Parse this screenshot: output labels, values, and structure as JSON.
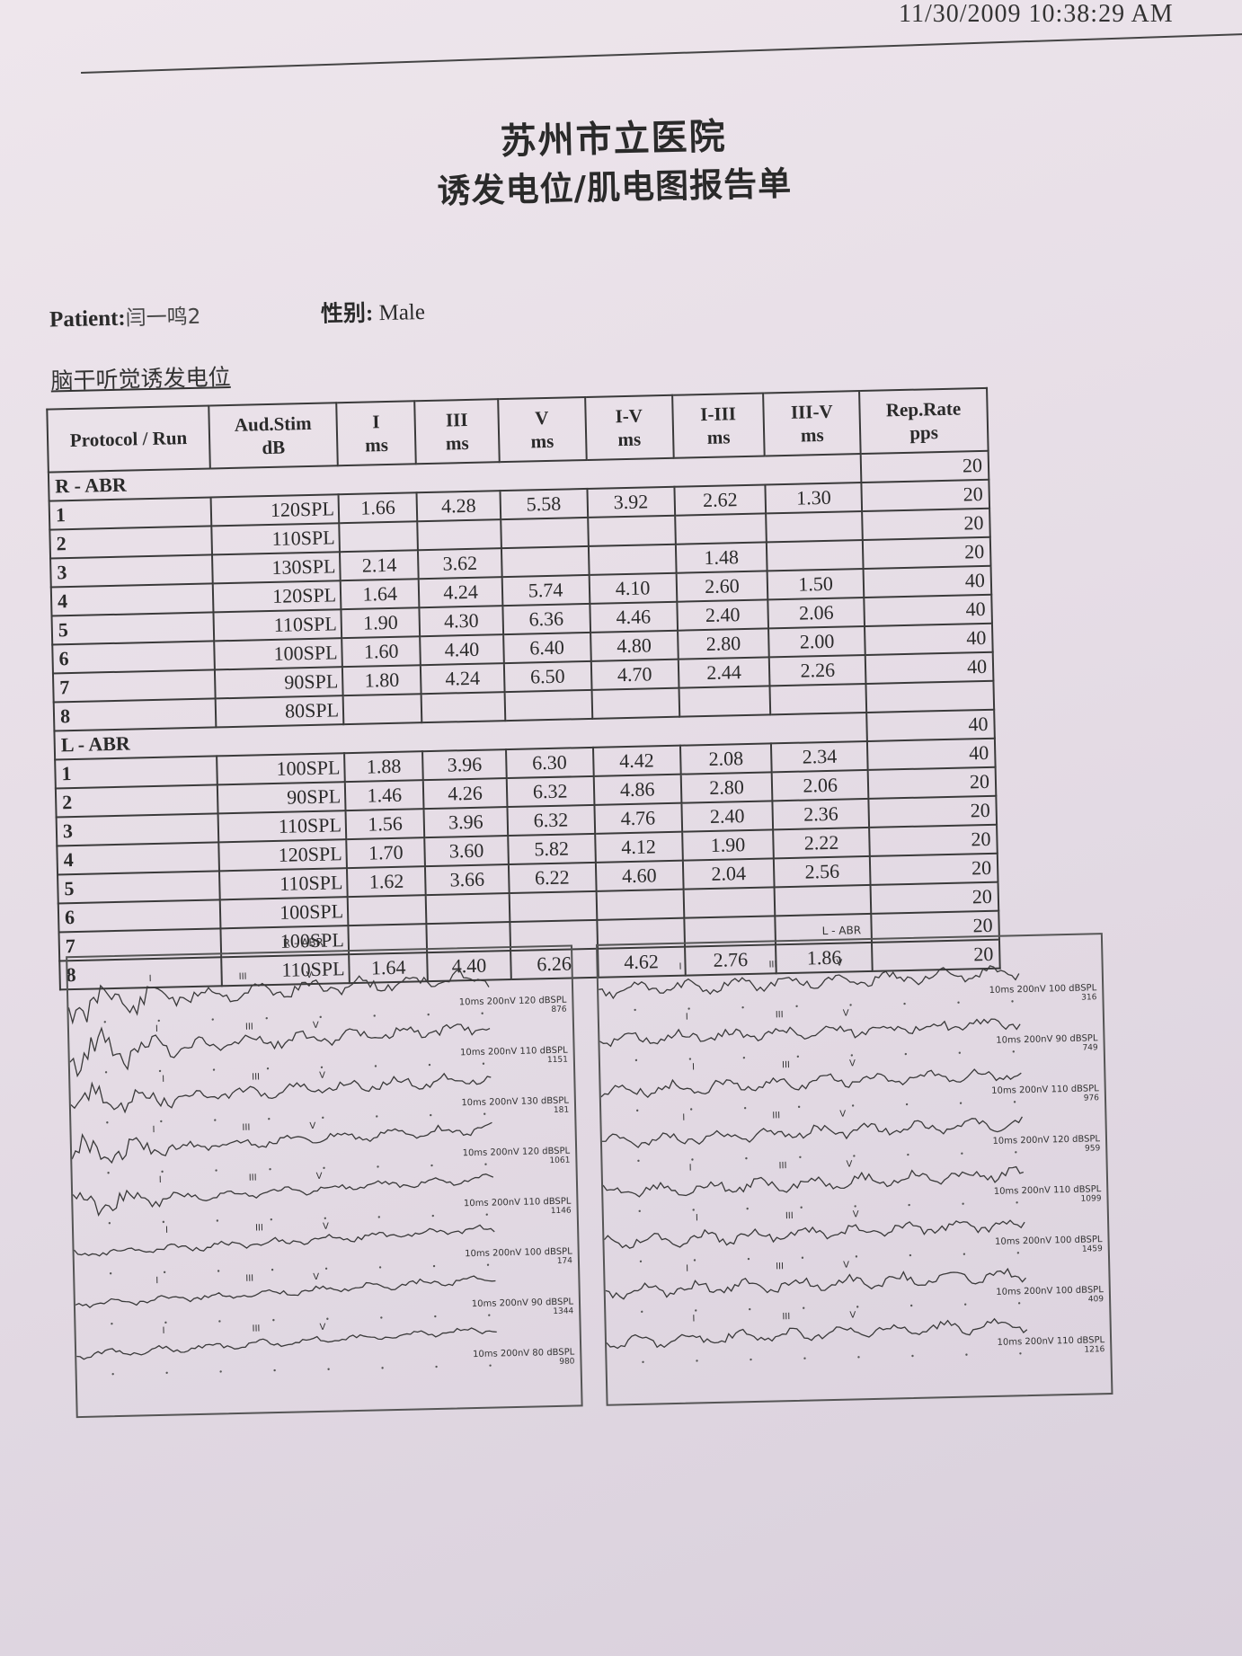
{
  "timestamp": "11/30/2009 10:38:29 AM",
  "hospital_name": "苏州市立医院",
  "report_title": "诱发电位/肌电图报告单",
  "patient": {
    "label": "Patient:",
    "name": "闫一鸣2",
    "sex_label": "性别:",
    "sex": "Male"
  },
  "section_title": "脑干听觉诱发电位",
  "table": {
    "headers": [
      {
        "l1": "Protocol / Run",
        "l2": ""
      },
      {
        "l1": "Aud.Stim",
        "l2": "dB"
      },
      {
        "l1": "I",
        "l2": "ms"
      },
      {
        "l1": "III",
        "l2": "ms"
      },
      {
        "l1": "V",
        "l2": "ms"
      },
      {
        "l1": "I-V",
        "l2": "ms"
      },
      {
        "l1": "I-III",
        "l2": "ms"
      },
      {
        "l1": "III-V",
        "l2": "ms"
      },
      {
        "l1": "Rep.Rate",
        "l2": "pps"
      }
    ],
    "groups": [
      {
        "name": "R - ABR",
        "group_rate": "20",
        "rows": [
          [
            "1",
            "120SPL",
            "1.66",
            "4.28",
            "5.58",
            "3.92",
            "2.62",
            "1.30",
            "20"
          ],
          [
            "2",
            "110SPL",
            "",
            "",
            "",
            "",
            "",
            "",
            "20"
          ],
          [
            "3",
            "130SPL",
            "2.14",
            "3.62",
            "",
            "",
            "1.48",
            "",
            "20"
          ],
          [
            "4",
            "120SPL",
            "1.64",
            "4.24",
            "5.74",
            "4.10",
            "2.60",
            "1.50",
            "40"
          ],
          [
            "5",
            "110SPL",
            "1.90",
            "4.30",
            "6.36",
            "4.46",
            "2.40",
            "2.06",
            "40"
          ],
          [
            "6",
            "100SPL",
            "1.60",
            "4.40",
            "6.40",
            "4.80",
            "2.80",
            "2.00",
            "40"
          ],
          [
            "7",
            "90SPL",
            "1.80",
            "4.24",
            "6.50",
            "4.70",
            "2.44",
            "2.26",
            "40"
          ],
          [
            "8",
            "80SPL",
            "",
            "",
            "",
            "",
            "",
            "",
            ""
          ]
        ]
      },
      {
        "name": "L - ABR",
        "group_rate": "40",
        "rows": [
          [
            "1",
            "100SPL",
            "1.88",
            "3.96",
            "6.30",
            "4.42",
            "2.08",
            "2.34",
            "40"
          ],
          [
            "2",
            "90SPL",
            "1.46",
            "4.26",
            "6.32",
            "4.86",
            "2.80",
            "2.06",
            "20"
          ],
          [
            "3",
            "110SPL",
            "1.56",
            "3.96",
            "6.32",
            "4.76",
            "2.40",
            "2.36",
            "20"
          ],
          [
            "4",
            "120SPL",
            "1.70",
            "3.60",
            "5.82",
            "4.12",
            "1.90",
            "2.22",
            "20"
          ],
          [
            "5",
            "110SPL",
            "1.62",
            "3.66",
            "6.22",
            "4.60",
            "2.04",
            "2.56",
            "20"
          ],
          [
            "6",
            "100SPL",
            "",
            "",
            "",
            "",
            "",
            "",
            "20"
          ],
          [
            "7",
            "100SPL",
            "",
            "",
            "",
            "",
            "",
            "",
            "20"
          ],
          [
            "8",
            "110SPL",
            "1.64",
            "4.40",
            "6.26",
            "4.62",
            "2.76",
            "1.86",
            "20"
          ]
        ]
      }
    ]
  },
  "waveforms": {
    "right": {
      "title": "R - ABR",
      "traces": [
        {
          "label": "10ms 200nV 120 dBSPL",
          "num": "876"
        },
        {
          "label": "10ms 200nV 110 dBSPL",
          "num": "1151"
        },
        {
          "label": "10ms 200nV 130 dBSPL",
          "num": "181"
        },
        {
          "label": "10ms 200nV 120 dBSPL",
          "num": "1061"
        },
        {
          "label": "10ms 200nV 110 dBSPL",
          "num": "1146"
        },
        {
          "label": "10ms 200nV 100 dBSPL",
          "num": "174"
        },
        {
          "label": "10ms 200nV 90 dBSPL",
          "num": "1344"
        },
        {
          "label": "10ms 200nV 80 dBSPL",
          "num": "980"
        }
      ]
    },
    "left": {
      "title": "L - ABR",
      "traces": [
        {
          "label": "10ms 200nV 100 dBSPL",
          "num": "316"
        },
        {
          "label": "10ms 200nV 90 dBSPL",
          "num": "749"
        },
        {
          "label": "10ms 200nV 110 dBSPL",
          "num": "976"
        },
        {
          "label": "10ms 200nV 120 dBSPL",
          "num": "959"
        },
        {
          "label": "10ms 200nV 110 dBSPL",
          "num": "1099"
        },
        {
          "label": "10ms 200nV 100 dBSPL",
          "num": "1459"
        },
        {
          "label": "10ms 200nV 100 dBSPL",
          "num": "409"
        },
        {
          "label": "10ms 200nV 110 dBSPL",
          "num": "1216"
        }
      ]
    },
    "peak_labels": {
      "i": "I",
      "iii": "III",
      "v": "V"
    }
  }
}
